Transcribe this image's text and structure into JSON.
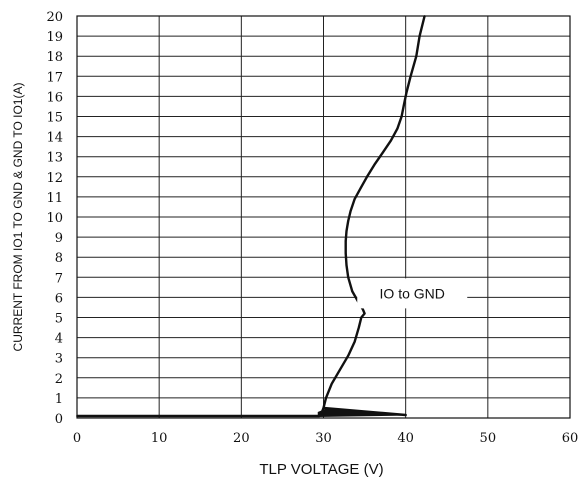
{
  "chart_data": {
    "type": "line",
    "xlabel": "TLP VOLTAGE (V)",
    "ylabel": "CURRENT FROM IO1 TO GND & GND TO IO1(A)",
    "xlim": [
      0,
      60
    ],
    "ylim": [
      0,
      20
    ],
    "x_ticks": [
      "0",
      "10",
      "20",
      "30",
      "40",
      "50",
      "60"
    ],
    "y_ticks": [
      "0",
      "1",
      "2",
      "3",
      "4",
      "5",
      "6",
      "7",
      "8",
      "9",
      "10",
      "11",
      "12",
      "13",
      "14",
      "15",
      "16",
      "17",
      "18",
      "19",
      "20"
    ],
    "grid": true,
    "annotation": "IO to GND",
    "series": [
      {
        "color": "#111111",
        "x": [
          0,
          29.5,
          29.8,
          30,
          40,
          30,
          30.3,
          31,
          32,
          33,
          33.8,
          34.3,
          34.6,
          35,
          34.8,
          34.2,
          33.5,
          33,
          32.8,
          32.7,
          32.7,
          32.8,
          33,
          33.3,
          33.8,
          34.6,
          35.3,
          36.2,
          37.2,
          38.2,
          39,
          39.5,
          39.8,
          40.1,
          40.6,
          41.3,
          41.7,
          42.3
        ],
        "y": [
          0.1,
          0.1,
          0.3,
          0.5,
          0.15,
          0.5,
          1.0,
          1.7,
          2.4,
          3.1,
          3.8,
          4.5,
          5.0,
          5.2,
          5.4,
          5.8,
          6.3,
          7.0,
          7.6,
          8.2,
          8.8,
          9.3,
          9.8,
          10.3,
          10.9,
          11.5,
          12.0,
          12.6,
          13.2,
          13.8,
          14.4,
          15.0,
          15.6,
          16.2,
          17.0,
          18.0,
          19.0,
          20.0
        ]
      }
    ]
  }
}
